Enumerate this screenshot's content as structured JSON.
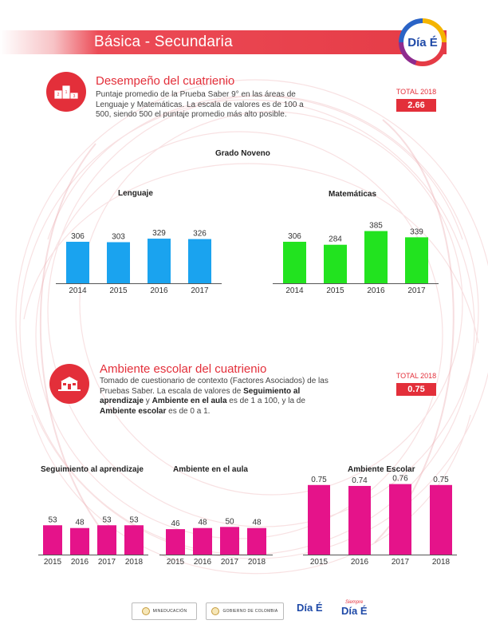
{
  "header": {
    "title": "Básica - Secundaria",
    "logo_text": "Día É"
  },
  "performance": {
    "title": "Desempeño del cuatrienio",
    "description": "Puntaje promedio de la Prueba Saber 9° en las áreas de Lenguaje y Matemáticas. La escala de valores es de 100 a 500, siendo 500 el puntaje promedio más alto posible.",
    "total_label": "TOTAL 2018",
    "total_value": "2.66",
    "grade_label": "Grado Noveno",
    "icon": "podium-icon"
  },
  "environment": {
    "title": "Ambiente escolar del cuatrienio",
    "desc_part1": "Tomado de cuestionario de contexto (Factores Asociados) de las Pruebas Saber. La escala de valores de ",
    "desc_bold1": "Seguimiento al aprendizaje",
    "desc_part2": " y ",
    "desc_bold2": "Ambiente en el aula",
    "desc_part3": " es de 1 a 100, y la de ",
    "desc_bold3": "Ambiente escolar",
    "desc_part4": " es de 0 a 1.",
    "total_label": "TOTAL 2018",
    "total_value": "0.75",
    "icon": "school-icon"
  },
  "colors": {
    "accent": "#e32f3a",
    "blue_bar": "#1aa3ef",
    "green_bar": "#22e31f",
    "pink_bar": "#e5138a"
  },
  "chart_data": [
    {
      "id": "lenguaje",
      "type": "bar",
      "title": "Lenguaje",
      "categories": [
        "2014",
        "2015",
        "2016",
        "2017"
      ],
      "values": [
        306,
        303,
        329,
        326
      ],
      "labels": [
        "306",
        "303",
        "329",
        "326"
      ],
      "color": "#1aa3ef"
    },
    {
      "id": "matematicas",
      "type": "bar",
      "title": "Matemáticas",
      "categories": [
        "2014",
        "2015",
        "2016",
        "2017"
      ],
      "values": [
        306,
        284,
        385,
        339
      ],
      "labels": [
        "306",
        "284",
        "385",
        "339"
      ],
      "color": "#22e31f"
    },
    {
      "id": "seguimiento",
      "type": "bar",
      "title": "Seguimiento al aprendizaje",
      "categories": [
        "2015",
        "2016",
        "2017",
        "2018"
      ],
      "values": [
        53,
        48,
        53,
        53
      ],
      "labels": [
        "53",
        "48",
        "53",
        "53"
      ],
      "color": "#e5138a"
    },
    {
      "id": "aula",
      "type": "bar",
      "title": "Ambiente en el aula",
      "categories": [
        "2015",
        "2016",
        "2017",
        "2018"
      ],
      "values": [
        46,
        48,
        50,
        48
      ],
      "labels": [
        "46",
        "48",
        "50",
        "48"
      ],
      "color": "#e5138a"
    },
    {
      "id": "escolar",
      "type": "bar",
      "title": "Ambiente Escolar",
      "categories": [
        "2015",
        "2016",
        "2017",
        "2018"
      ],
      "values": [
        0.75,
        0.74,
        0.76,
        0.75
      ],
      "labels": [
        "0.75",
        "0.74",
        "0.76",
        "0.75"
      ],
      "color": "#e5138a"
    }
  ],
  "footer": {
    "mineducacion": "MINEDUCACIÓN",
    "gobierno": "GOBIERNO DE COLOMBIA",
    "dia_e": "Día É",
    "siempre": "Siempre",
    "siempre_dia_e": "Día É"
  }
}
